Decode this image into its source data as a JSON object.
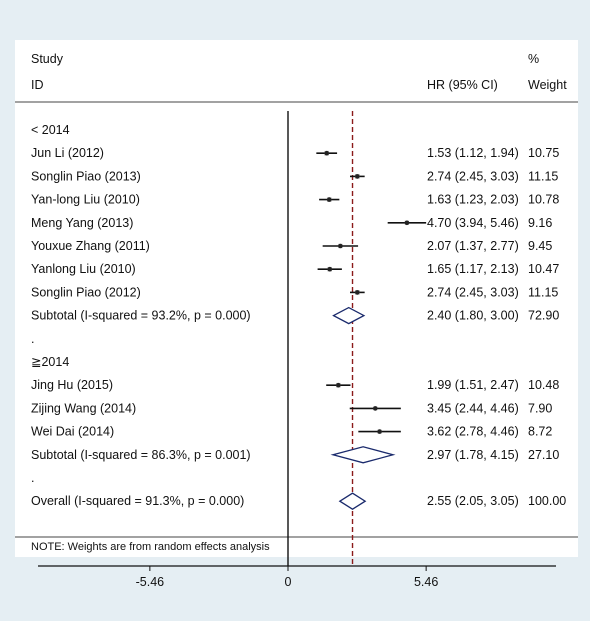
{
  "header": {
    "study_line1": "Study",
    "study_line2": "ID",
    "hr_label": "HR (95% CI)",
    "pct_line1": "%",
    "pct_line2": "Weight"
  },
  "footnote": "NOTE: Weights are from random effects analysis",
  "colors": {
    "background": "#e5eef3",
    "plot_background": "#ffffff",
    "reference_line": "#8b1a1a",
    "marker": "#222222"
  },
  "chart_data": {
    "type": "forest",
    "x_ticks": [
      "-5.46",
      "0",
      "5.46"
    ],
    "x_tick_values": [
      -5.46,
      0,
      5.46
    ],
    "null_line": 0,
    "overall_line": 2.55,
    "rows": [
      {
        "kind": "group",
        "label": "< 2014"
      },
      {
        "kind": "study",
        "label": "Jun Li (2012)",
        "hr": 1.53,
        "lo": 1.12,
        "hi": 1.94,
        "ci": "1.53 (1.12, 1.94)",
        "weight": "10.75"
      },
      {
        "kind": "study",
        "label": "Songlin Piao (2013)",
        "hr": 2.74,
        "lo": 2.45,
        "hi": 3.03,
        "ci": "2.74 (2.45, 3.03)",
        "weight": "11.15"
      },
      {
        "kind": "study",
        "label": "Yan-long Liu (2010)",
        "hr": 1.63,
        "lo": 1.23,
        "hi": 2.03,
        "ci": "1.63 (1.23, 2.03)",
        "weight": "10.78"
      },
      {
        "kind": "study",
        "label": "Meng Yang (2013)",
        "hr": 4.7,
        "lo": 3.94,
        "hi": 5.46,
        "ci": "4.70 (3.94, 5.46)",
        "weight": "9.16"
      },
      {
        "kind": "study",
        "label": "Youxue Zhang (2011)",
        "hr": 2.07,
        "lo": 1.37,
        "hi": 2.77,
        "ci": "2.07 (1.37, 2.77)",
        "weight": "9.45"
      },
      {
        "kind": "study",
        "label": "Yanlong Liu (2010)",
        "hr": 1.65,
        "lo": 1.17,
        "hi": 2.13,
        "ci": "1.65 (1.17, 2.13)",
        "weight": "10.47"
      },
      {
        "kind": "study",
        "label": "Songlin Piao (2012)",
        "hr": 2.74,
        "lo": 2.45,
        "hi": 3.03,
        "ci": "2.74 (2.45, 3.03)",
        "weight": "11.15"
      },
      {
        "kind": "subtotal",
        "label": "Subtotal  (I-squared = 93.2%, p = 0.000)",
        "hr": 2.4,
        "lo": 1.8,
        "hi": 3.0,
        "ci": "2.40 (1.80, 3.00)",
        "weight": "72.90"
      },
      {
        "kind": "spacer",
        "label": "."
      },
      {
        "kind": "group",
        "label": "≧2014"
      },
      {
        "kind": "study",
        "label": "Jing Hu (2015)",
        "hr": 1.99,
        "lo": 1.51,
        "hi": 2.47,
        "ci": "1.99 (1.51, 2.47)",
        "weight": "10.48"
      },
      {
        "kind": "study",
        "label": "Zijing Wang (2014)",
        "hr": 3.45,
        "lo": 2.44,
        "hi": 4.46,
        "ci": "3.45 (2.44, 4.46)",
        "weight": "7.90"
      },
      {
        "kind": "study",
        "label": "Wei Dai (2014)",
        "hr": 3.62,
        "lo": 2.78,
        "hi": 4.46,
        "ci": "3.62 (2.78, 4.46)",
        "weight": "8.72"
      },
      {
        "kind": "subtotal",
        "label": "Subtotal  (I-squared = 86.3%, p = 0.001)",
        "hr": 2.97,
        "lo": 1.78,
        "hi": 4.15,
        "ci": "2.97 (1.78, 4.15)",
        "weight": "27.10"
      },
      {
        "kind": "spacer",
        "label": "."
      },
      {
        "kind": "overall",
        "label": "Overall  (I-squared = 91.3%, p = 0.000)",
        "hr": 2.55,
        "lo": 2.05,
        "hi": 3.05,
        "ci": "2.55 (2.05, 3.05)",
        "weight": "100.00"
      }
    ]
  }
}
